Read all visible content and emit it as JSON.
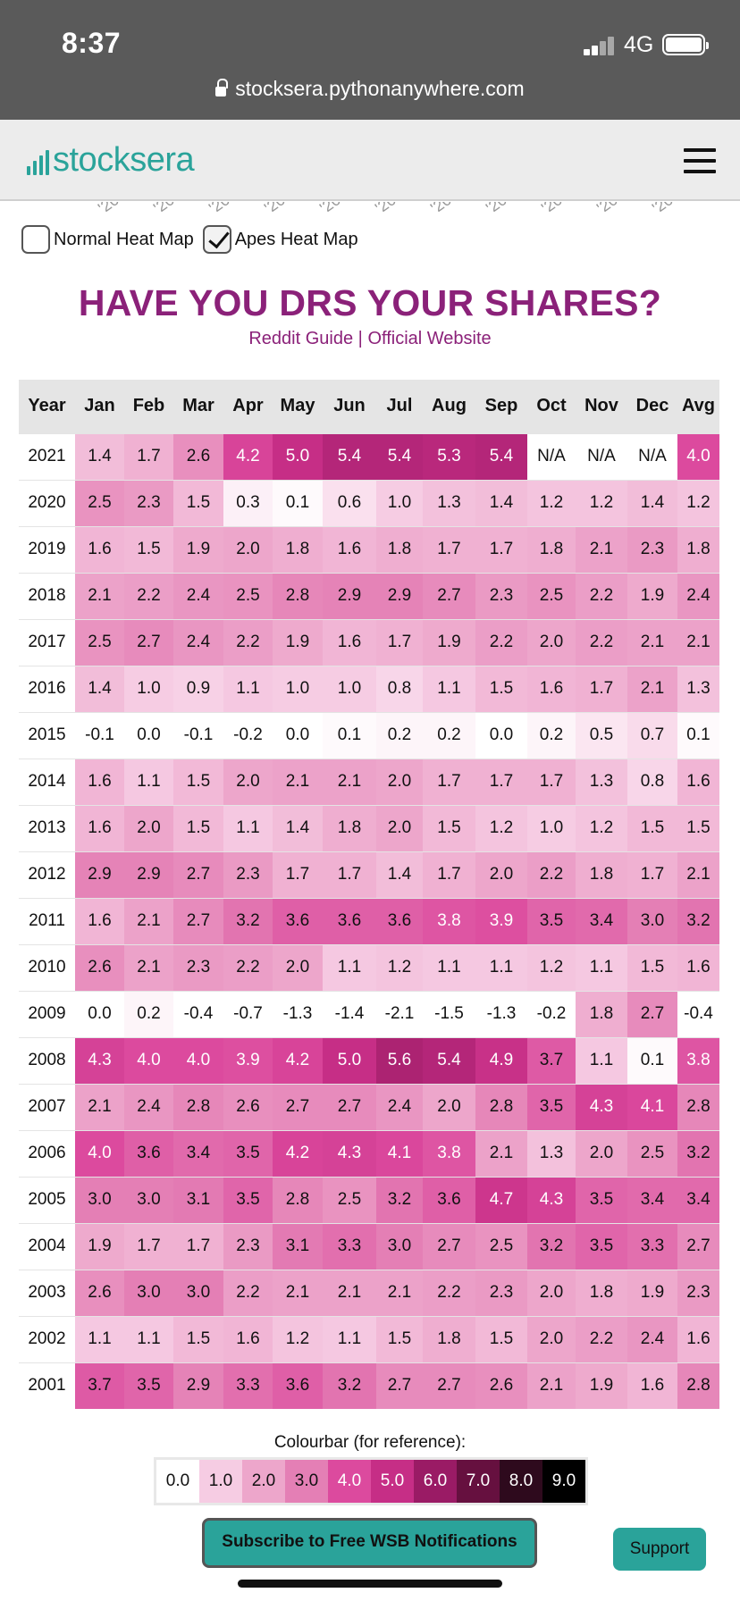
{
  "status_bar": {
    "time": "8:37",
    "network": "4G"
  },
  "browser": {
    "url": "stocksera.pythonanywhere.com"
  },
  "site": {
    "logo_text": "stocksera"
  },
  "toggles": {
    "normal_label": "Normal Heat Map",
    "normal_checked": false,
    "apes_label": "Apes Heat Map",
    "apes_checked": true
  },
  "page": {
    "headline": "HAVE YOU DRS YOUR SHARES?",
    "link_reddit": "Reddit Guide",
    "link_separator": "|",
    "link_official": "Official Website"
  },
  "table": {
    "columns": [
      "Year",
      "Jan",
      "Feb",
      "Mar",
      "Apr",
      "May",
      "Jun",
      "Jul",
      "Aug",
      "Sep",
      "Oct",
      "Nov",
      "Dec",
      "Avg"
    ],
    "rows": [
      [
        "2021",
        "1.4",
        "1.7",
        "2.6",
        "4.2",
        "5.0",
        "5.4",
        "5.4",
        "5.3",
        "5.4",
        "N/A",
        "N/A",
        "N/A",
        "4.0"
      ],
      [
        "2020",
        "2.5",
        "2.3",
        "1.5",
        "0.3",
        "0.1",
        "0.6",
        "1.0",
        "1.3",
        "1.4",
        "1.2",
        "1.2",
        "1.4",
        "1.2"
      ],
      [
        "2019",
        "1.6",
        "1.5",
        "1.9",
        "2.0",
        "1.8",
        "1.6",
        "1.8",
        "1.7",
        "1.7",
        "1.8",
        "2.1",
        "2.3",
        "1.8"
      ],
      [
        "2018",
        "2.1",
        "2.2",
        "2.4",
        "2.5",
        "2.8",
        "2.9",
        "2.9",
        "2.7",
        "2.3",
        "2.5",
        "2.2",
        "1.9",
        "2.4"
      ],
      [
        "2017",
        "2.5",
        "2.7",
        "2.4",
        "2.2",
        "1.9",
        "1.6",
        "1.7",
        "1.9",
        "2.2",
        "2.0",
        "2.2",
        "2.1",
        "2.1"
      ],
      [
        "2016",
        "1.4",
        "1.0",
        "0.9",
        "1.1",
        "1.0",
        "1.0",
        "0.8",
        "1.1",
        "1.5",
        "1.6",
        "1.7",
        "2.1",
        "1.3"
      ],
      [
        "2015",
        "-0.1",
        "0.0",
        "-0.1",
        "-0.2",
        "0.0",
        "0.1",
        "0.2",
        "0.2",
        "0.0",
        "0.2",
        "0.5",
        "0.7",
        "0.1"
      ],
      [
        "2014",
        "1.6",
        "1.1",
        "1.5",
        "2.0",
        "2.1",
        "2.1",
        "2.0",
        "1.7",
        "1.7",
        "1.7",
        "1.3",
        "0.8",
        "1.6"
      ],
      [
        "2013",
        "1.6",
        "2.0",
        "1.5",
        "1.1",
        "1.4",
        "1.8",
        "2.0",
        "1.5",
        "1.2",
        "1.0",
        "1.2",
        "1.5",
        "1.5"
      ],
      [
        "2012",
        "2.9",
        "2.9",
        "2.7",
        "2.3",
        "1.7",
        "1.7",
        "1.4",
        "1.7",
        "2.0",
        "2.2",
        "1.8",
        "1.7",
        "2.1"
      ],
      [
        "2011",
        "1.6",
        "2.1",
        "2.7",
        "3.2",
        "3.6",
        "3.6",
        "3.6",
        "3.8",
        "3.9",
        "3.5",
        "3.4",
        "3.0",
        "3.2"
      ],
      [
        "2010",
        "2.6",
        "2.1",
        "2.3",
        "2.2",
        "2.0",
        "1.1",
        "1.2",
        "1.1",
        "1.1",
        "1.2",
        "1.1",
        "1.5",
        "1.6"
      ],
      [
        "2009",
        "0.0",
        "0.2",
        "-0.4",
        "-0.7",
        "-1.3",
        "-1.4",
        "-2.1",
        "-1.5",
        "-1.3",
        "-0.2",
        "1.8",
        "2.7",
        "-0.4"
      ],
      [
        "2008",
        "4.3",
        "4.0",
        "4.0",
        "3.9",
        "4.2",
        "5.0",
        "5.6",
        "5.4",
        "4.9",
        "3.7",
        "1.1",
        "0.1",
        "3.8"
      ],
      [
        "2007",
        "2.1",
        "2.4",
        "2.8",
        "2.6",
        "2.7",
        "2.7",
        "2.4",
        "2.0",
        "2.8",
        "3.5",
        "4.3",
        "4.1",
        "2.8"
      ],
      [
        "2006",
        "4.0",
        "3.6",
        "3.4",
        "3.5",
        "4.2",
        "4.3",
        "4.1",
        "3.8",
        "2.1",
        "1.3",
        "2.0",
        "2.5",
        "3.2"
      ],
      [
        "2005",
        "3.0",
        "3.0",
        "3.1",
        "3.5",
        "2.8",
        "2.5",
        "3.2",
        "3.6",
        "4.7",
        "4.3",
        "3.5",
        "3.4",
        "3.4"
      ],
      [
        "2004",
        "1.9",
        "1.7",
        "1.7",
        "2.3",
        "3.1",
        "3.3",
        "3.0",
        "2.7",
        "2.5",
        "3.2",
        "3.5",
        "3.3",
        "2.7"
      ],
      [
        "2003",
        "2.6",
        "3.0",
        "3.0",
        "2.2",
        "2.1",
        "2.1",
        "2.1",
        "2.2",
        "2.3",
        "2.0",
        "1.8",
        "1.9",
        "2.3"
      ],
      [
        "2002",
        "1.1",
        "1.1",
        "1.5",
        "1.6",
        "1.2",
        "1.1",
        "1.5",
        "1.8",
        "1.5",
        "2.0",
        "2.2",
        "2.4",
        "1.6"
      ],
      [
        "2001",
        "3.7",
        "3.5",
        "2.9",
        "3.3",
        "3.6",
        "3.2",
        "2.7",
        "2.7",
        "2.6",
        "2.1",
        "1.9",
        "1.6",
        "2.8"
      ]
    ]
  },
  "colourbar": {
    "title": "Colourbar (for reference):",
    "ticks": [
      "0.0",
      "1.0",
      "2.0",
      "3.0",
      "4.0",
      "5.0",
      "6.0",
      "7.0",
      "8.0",
      "9.0"
    ],
    "colors": [
      "#ffffff",
      "#f6cce3",
      "#eda6cb",
      "#e47fb5",
      "#dc4a9e",
      "#c62e86",
      "#9a1b65",
      "#66103f",
      "#2e0a1d",
      "#000000"
    ]
  },
  "buttons": {
    "subscribe": "Subscribe to Free WSB Notifications",
    "support": "Support"
  }
}
